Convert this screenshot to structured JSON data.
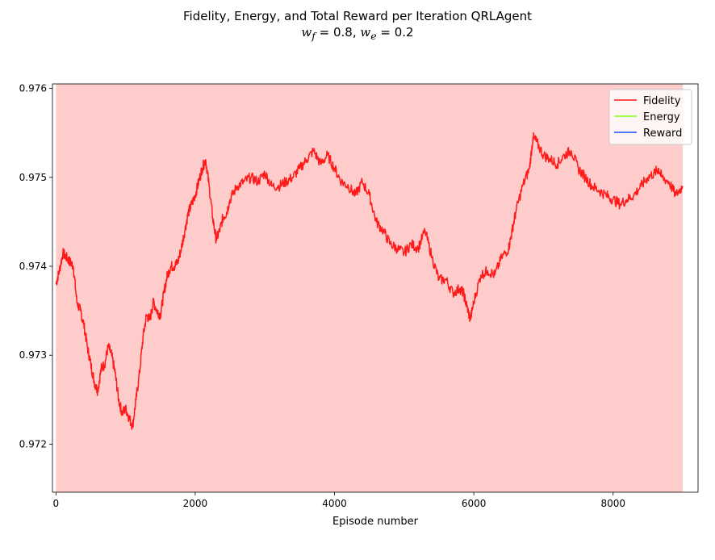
{
  "chart_data": {
    "type": "line",
    "title_line1": "Fidelity, Energy, and Total Reward per Iteration QRLAgent",
    "title_w_f": "w",
    "title_w_f_sub": "f",
    "title_w_f_val": " = 0.8, ",
    "title_w_e": "w",
    "title_w_e_sub": "e",
    "title_w_e_val": " = 0.2",
    "xlabel": "Episode number",
    "ylabel": "",
    "xlim": [
      -50,
      9220
    ],
    "ylim": [
      0.97146,
      0.97605
    ],
    "xticks": [
      0,
      2000,
      4000,
      6000,
      8000
    ],
    "xtick_labels": [
      "0",
      "2000",
      "4000",
      "6000",
      "8000"
    ],
    "yticks": [
      0.972,
      0.973,
      0.974,
      0.975,
      0.976
    ],
    "ytick_labels": [
      "0.972",
      "0.973",
      "0.974",
      "0.975",
      "0.976"
    ],
    "background_span": {
      "x": [
        0,
        9000
      ],
      "color": "#ffcccc"
    },
    "legend_position": "upper right",
    "series": [
      {
        "name": "Fidelity",
        "color": "#ff1a1a",
        "x": [
          0,
          50,
          100,
          150,
          200,
          250,
          300,
          350,
          400,
          450,
          500,
          550,
          600,
          650,
          700,
          750,
          800,
          850,
          900,
          950,
          1000,
          1050,
          1100,
          1150,
          1200,
          1250,
          1300,
          1350,
          1400,
          1450,
          1500,
          1550,
          1600,
          1650,
          1700,
          1750,
          1800,
          1850,
          1900,
          1950,
          2000,
          2050,
          2100,
          2150,
          2200,
          2250,
          2300,
          2350,
          2400,
          2450,
          2500,
          2600,
          2700,
          2800,
          2900,
          3000,
          3100,
          3200,
          3300,
          3400,
          3500,
          3600,
          3700,
          3800,
          3900,
          4000,
          4100,
          4200,
          4300,
          4400,
          4500,
          4600,
          4700,
          4800,
          4900,
          5000,
          5100,
          5200,
          5300,
          5400,
          5500,
          5600,
          5700,
          5800,
          5850,
          5900,
          5950,
          6000,
          6100,
          6200,
          6300,
          6400,
          6500,
          6550,
          6600,
          6700,
          6800,
          6850,
          6900,
          7000,
          7100,
          7200,
          7300,
          7400,
          7500,
          7600,
          7700,
          7800,
          7900,
          8000,
          8100,
          8200,
          8300,
          8400,
          8500,
          8600,
          8650,
          8700,
          8800,
          8900,
          9000
        ],
        "values": [
          0.9738,
          0.97395,
          0.97415,
          0.9741,
          0.97405,
          0.974,
          0.9736,
          0.9735,
          0.97335,
          0.9731,
          0.9729,
          0.9727,
          0.9726,
          0.97285,
          0.9729,
          0.9731,
          0.973,
          0.9728,
          0.9725,
          0.97235,
          0.9724,
          0.9723,
          0.9722,
          0.9725,
          0.9728,
          0.9732,
          0.97345,
          0.9734,
          0.9736,
          0.9735,
          0.97345,
          0.9737,
          0.9739,
          0.974,
          0.974,
          0.97405,
          0.9742,
          0.9744,
          0.9746,
          0.9747,
          0.9748,
          0.97495,
          0.9751,
          0.9752,
          0.9749,
          0.97455,
          0.9743,
          0.9744,
          0.97455,
          0.9746,
          0.97475,
          0.9749,
          0.97495,
          0.975,
          0.97495,
          0.97505,
          0.9749,
          0.9749,
          0.97495,
          0.975,
          0.9751,
          0.9752,
          0.9753,
          0.97515,
          0.97525,
          0.9751,
          0.97495,
          0.9749,
          0.9748,
          0.97495,
          0.9748,
          0.9745,
          0.9744,
          0.97425,
          0.9742,
          0.97415,
          0.97425,
          0.9742,
          0.9744,
          0.9741,
          0.97385,
          0.97385,
          0.9737,
          0.97375,
          0.9737,
          0.97355,
          0.9734,
          0.9736,
          0.9739,
          0.97395,
          0.9739,
          0.9741,
          0.9742,
          0.9744,
          0.9746,
          0.9749,
          0.9751,
          0.97545,
          0.9754,
          0.97525,
          0.9752,
          0.97515,
          0.97525,
          0.9753,
          0.9751,
          0.975,
          0.9749,
          0.97485,
          0.9748,
          0.97475,
          0.9747,
          0.97475,
          0.9748,
          0.9749,
          0.975,
          0.97505,
          0.9751,
          0.975,
          0.97495,
          0.9748,
          0.9749
        ]
      },
      {
        "name": "Energy",
        "color": "#80ff1a",
        "x": [],
        "values": []
      },
      {
        "name": "Reward",
        "color": "#1a4dff",
        "x": [],
        "values": []
      }
    ]
  }
}
